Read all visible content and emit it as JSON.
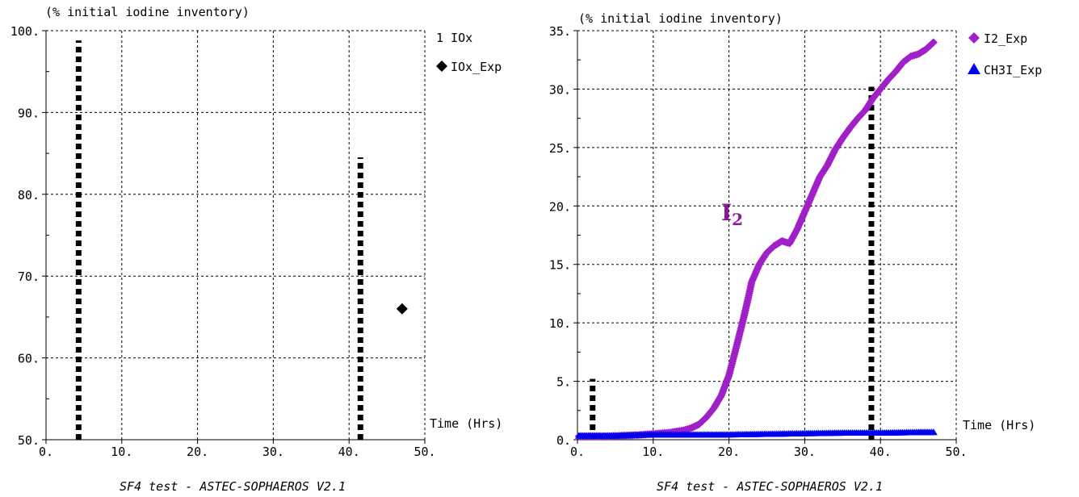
{
  "chart_data": [
    {
      "type": "scatter",
      "unit_label": "(% initial iodine inventory)",
      "xlabel": "Time (Hrs)",
      "caption": "SF4 test  -  ASTEC-SOPHAEROS V2.1",
      "xlim": [
        0,
        50
      ],
      "ylim": [
        50,
        100
      ],
      "x_ticks": [
        "0.",
        "10.",
        "20.",
        "30.",
        "40.",
        "50."
      ],
      "y_ticks": [
        "50.",
        "60.",
        "70.",
        "80.",
        "90.",
        "100."
      ],
      "grid": true,
      "legend_position": "right",
      "series": [
        {
          "name": "1 IOx",
          "marker": "none",
          "color": "#000000",
          "points": []
        },
        {
          "name": "IOx_Exp",
          "marker": "diamond",
          "color": "#000000",
          "points": [
            [
              47,
              66
            ]
          ]
        }
      ],
      "vertical_markers": [
        {
          "x": 4.3,
          "y_from": 50,
          "y_to": 98.8,
          "color": "#000000"
        },
        {
          "x": 41.5,
          "y_from": 50,
          "y_to": 84.5,
          "color": "#000000"
        }
      ]
    },
    {
      "type": "scatter",
      "unit_label": "(% initial iodine inventory)",
      "xlabel": "Time (Hrs)",
      "caption": "SF4 test  -  ASTEC-SOPHAEROS V2.1",
      "annotation": "I",
      "annotation_sub": "2",
      "xlim": [
        0,
        50
      ],
      "ylim": [
        0,
        35
      ],
      "x_ticks": [
        "0.",
        "10.",
        "20.",
        "30.",
        "40.",
        "50."
      ],
      "y_ticks": [
        "0.",
        "5.",
        "10.",
        "15.",
        "20.",
        "25.",
        "30.",
        "35."
      ],
      "grid": true,
      "legend_position": "right",
      "series": [
        {
          "name": "I2_Exp",
          "marker": "diamond",
          "color": "#a020c8",
          "points": [
            [
              0.2,
              0.3
            ],
            [
              2,
              0.3
            ],
            [
              4,
              0.3
            ],
            [
              6,
              0.35
            ],
            [
              8,
              0.4
            ],
            [
              10,
              0.5
            ],
            [
              12,
              0.6
            ],
            [
              14,
              0.8
            ],
            [
              15,
              1.0
            ],
            [
              16,
              1.3
            ],
            [
              17,
              1.9
            ],
            [
              18,
              2.7
            ],
            [
              19,
              3.8
            ],
            [
              20,
              5.5
            ],
            [
              21,
              8.0
            ],
            [
              22,
              10.6
            ],
            [
              22.5,
              12.0
            ],
            [
              23,
              13.5
            ],
            [
              24,
              15.0
            ],
            [
              25,
              16.0
            ],
            [
              26,
              16.6
            ],
            [
              27,
              17.0
            ],
            [
              28,
              16.8
            ],
            [
              29,
              18.0
            ],
            [
              30,
              19.5
            ],
            [
              31,
              21.0
            ],
            [
              32,
              22.5
            ],
            [
              33,
              23.5
            ],
            [
              34,
              24.8
            ],
            [
              35,
              25.8
            ],
            [
              36,
              26.7
            ],
            [
              37,
              27.5
            ],
            [
              38,
              28.2
            ],
            [
              39,
              29.2
            ],
            [
              40,
              30.0
            ],
            [
              41,
              30.8
            ],
            [
              42,
              31.5
            ],
            [
              43,
              32.3
            ],
            [
              44,
              32.8
            ],
            [
              45,
              33.0
            ],
            [
              46,
              33.4
            ],
            [
              47,
              34.0
            ]
          ]
        },
        {
          "name": "CH3I_Exp",
          "marker": "triangle",
          "color": "#0000ee",
          "points": [
            [
              0.2,
              0.3
            ],
            [
              5,
              0.3
            ],
            [
              10,
              0.4
            ],
            [
              15,
              0.4
            ],
            [
              20,
              0.4
            ],
            [
              25,
              0.45
            ],
            [
              30,
              0.5
            ],
            [
              35,
              0.55
            ],
            [
              40,
              0.55
            ],
            [
              45,
              0.6
            ],
            [
              47,
              0.6
            ]
          ]
        }
      ],
      "vertical_markers": [
        {
          "x": 2.0,
          "y_from": 0,
          "y_to": 5.2,
          "color": "#000000"
        },
        {
          "x": 38.8,
          "y_from": 0,
          "y_to": 30.2,
          "color": "#000000"
        }
      ]
    }
  ]
}
